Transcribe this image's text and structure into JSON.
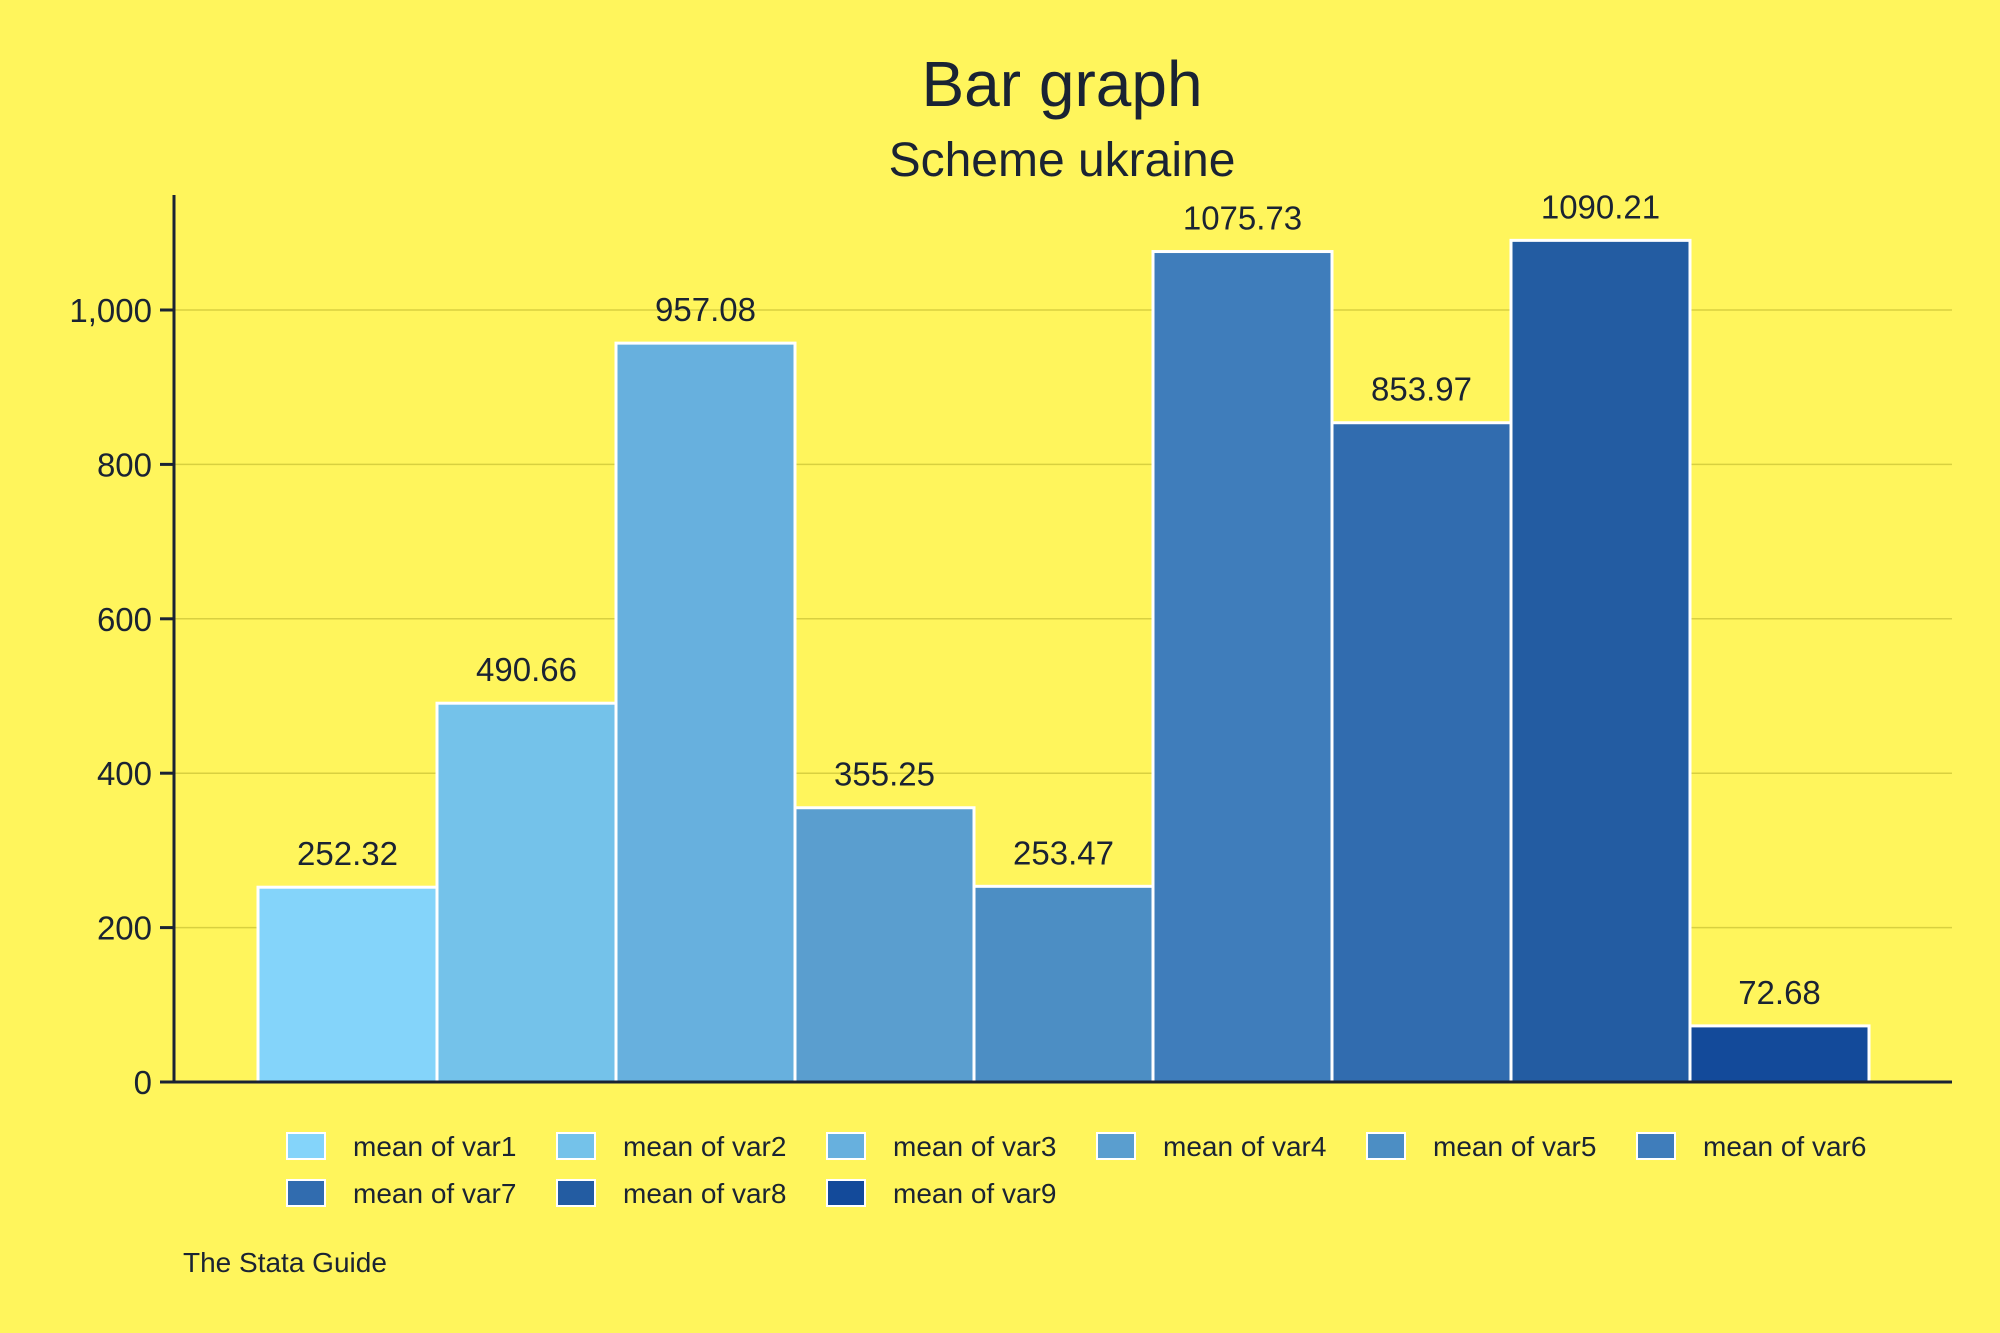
{
  "chart_data": {
    "type": "bar",
    "title": "Bar graph",
    "subtitle": "Scheme ukraine",
    "note": "The Stata Guide",
    "xlabel": "",
    "ylabel": "",
    "ylim": [
      0,
      1150
    ],
    "yticks": [
      0,
      200,
      400,
      600,
      800,
      1000
    ],
    "ytick_labels": [
      "0",
      "200",
      "400",
      "600",
      "800",
      "1,000"
    ],
    "grid": true,
    "legend_position": "bottom",
    "series": [
      {
        "name": "mean of var1",
        "value": 252.32,
        "label": "252.32",
        "color": "#84d4fa"
      },
      {
        "name": "mean of var2",
        "value": 490.66,
        "label": "490.66",
        "color": "#74c2ea"
      },
      {
        "name": "mean of var3",
        "value": 957.08,
        "label": "957.08",
        "color": "#67b0de"
      },
      {
        "name": "mean of var4",
        "value": 355.25,
        "label": "355.25",
        "color": "#5a9ecf"
      },
      {
        "name": "mean of var5",
        "value": 253.47,
        "label": "253.47",
        "color": "#4c8ec4"
      },
      {
        "name": "mean of var6",
        "value": 1075.73,
        "label": "1075.73",
        "color": "#3f7dbb"
      },
      {
        "name": "mean of var7",
        "value": 853.97,
        "label": "853.97",
        "color": "#316caf"
      },
      {
        "name": "mean of var8",
        "value": 1090.21,
        "label": "1090.21",
        "color": "#235ca2"
      },
      {
        "name": "mean of var9",
        "value": 72.68,
        "label": "72.68",
        "color": "#134a9a"
      }
    ]
  }
}
